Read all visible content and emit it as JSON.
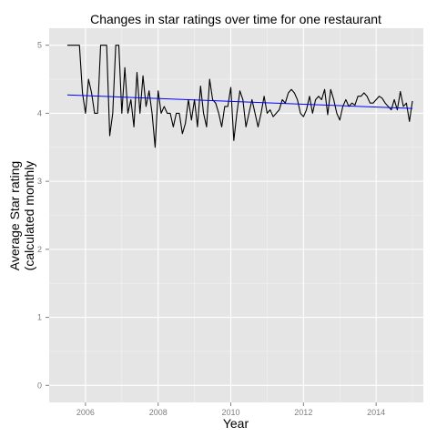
{
  "chart_data": {
    "type": "line",
    "title": "Changes in star ratings over time for one restaurant",
    "xlabel": "Year",
    "ylabel_line1": "Average Star rating",
    "ylabel_line2": "(calculated monthly",
    "xlim": [
      2005.0,
      2015.3
    ],
    "ylim": [
      -0.25,
      5.25
    ],
    "x_ticks": [
      2006,
      2008,
      2010,
      2012,
      2014
    ],
    "y_ticks": [
      0,
      1,
      2,
      3,
      4,
      5
    ],
    "grid": true,
    "colors": {
      "panel_background": "#e5e5e5",
      "grid_line": "#ffffff",
      "series_line": "#000000",
      "trend_line": "#0000ff",
      "tick_label": "#7f7f7f"
    },
    "series": [
      {
        "x": [
          2005.5,
          2005.583,
          2005.667,
          2005.75,
          2005.833,
          2005.917,
          2006.0,
          2006.083,
          2006.167,
          2006.25,
          2006.333,
          2006.417,
          2006.5,
          2006.583,
          2006.667,
          2006.75,
          2006.833,
          2006.917,
          2007.0,
          2007.083,
          2007.167,
          2007.25,
          2007.333,
          2007.417,
          2007.5,
          2007.583,
          2007.667,
          2007.75,
          2007.833,
          2007.917,
          2008.0,
          2008.083,
          2008.167,
          2008.25,
          2008.333,
          2008.417,
          2008.5,
          2008.583,
          2008.667,
          2008.75,
          2008.833,
          2008.917,
          2009.0,
          2009.083,
          2009.167,
          2009.25,
          2009.333,
          2009.417,
          2009.5,
          2009.583,
          2009.667,
          2009.75,
          2009.833,
          2009.917,
          2010.0,
          2010.083,
          2010.167,
          2010.25,
          2010.333,
          2010.417,
          2010.5,
          2010.583,
          2010.667,
          2010.75,
          2010.833,
          2010.917,
          2011.0,
          2011.083,
          2011.167,
          2011.25,
          2011.333,
          2011.417,
          2011.5,
          2011.583,
          2011.667,
          2011.75,
          2011.833,
          2011.917,
          2012.0,
          2012.083,
          2012.167,
          2012.25,
          2012.333,
          2012.417,
          2012.5,
          2012.583,
          2012.667,
          2012.75,
          2012.833,
          2012.917,
          2013.0,
          2013.083,
          2013.167,
          2013.25,
          2013.333,
          2013.417,
          2013.5,
          2013.583,
          2013.667,
          2013.75,
          2013.833,
          2013.917,
          2014.0,
          2014.083,
          2014.167,
          2014.25,
          2014.333,
          2014.417,
          2014.5,
          2014.583,
          2014.667,
          2014.75,
          2014.833,
          2014.917,
          2015.0
        ],
        "values": [
          5.0,
          5.0,
          5.0,
          5.0,
          5.0,
          4.3,
          4.0,
          4.5,
          4.3,
          4.0,
          4.0,
          5.0,
          5.0,
          5.0,
          3.67,
          4.0,
          5.0,
          5.0,
          4.0,
          4.67,
          4.0,
          4.2,
          3.8,
          4.6,
          4.0,
          4.55,
          4.1,
          4.33,
          4.0,
          3.5,
          4.33,
          4.0,
          4.1,
          4.0,
          4.0,
          3.8,
          4.0,
          4.0,
          3.7,
          3.85,
          4.2,
          3.9,
          4.2,
          3.8,
          4.4,
          4.0,
          3.8,
          4.5,
          4.2,
          4.15,
          4.0,
          3.8,
          4.1,
          4.1,
          4.38,
          3.6,
          4.0,
          4.33,
          4.2,
          3.8,
          4.0,
          4.2,
          4.0,
          3.8,
          4.0,
          4.25,
          4.0,
          4.05,
          3.95,
          4.0,
          4.05,
          4.2,
          4.15,
          4.3,
          4.35,
          4.3,
          4.2,
          4.0,
          3.95,
          4.05,
          4.25,
          4.0,
          4.2,
          4.25,
          4.2,
          4.35,
          3.98,
          4.35,
          4.2,
          4.0,
          3.9,
          4.1,
          4.2,
          4.1,
          4.15,
          4.12,
          4.25,
          4.25,
          4.3,
          4.25,
          4.15,
          4.15,
          4.2,
          4.25,
          4.22,
          4.15,
          4.1,
          4.05,
          4.2,
          4.05,
          4.32,
          4.1,
          4.15,
          3.88,
          4.18
        ]
      }
    ],
    "trend": {
      "x": [
        2005.5,
        2015.0
      ],
      "y": [
        4.27,
        4.07
      ]
    }
  }
}
